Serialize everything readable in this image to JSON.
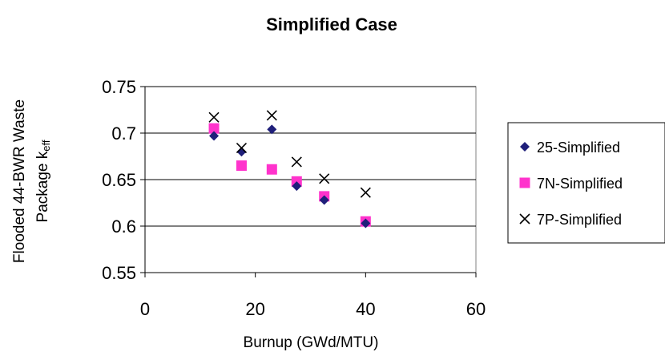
{
  "chart_data": {
    "type": "scatter",
    "title": "Simplified Case",
    "xlabel": "Burnup (GWd/MTU)",
    "ylabel_line1": "Flooded 44-BWR Waste",
    "ylabel_line2_main": "Package k",
    "ylabel_line2_sub": "eff",
    "xlim": [
      0,
      60
    ],
    "ylim": [
      0.55,
      0.75
    ],
    "xticks": [
      0,
      20,
      40,
      60
    ],
    "xtick_labels": [
      "0",
      "20",
      "40",
      "60"
    ],
    "yticks": [
      0.55,
      0.6,
      0.65,
      0.7,
      0.75
    ],
    "ytick_labels": [
      "0.55",
      "0.6",
      "0.65",
      "0.7",
      "0.75"
    ],
    "grid": "horizontal",
    "legend_position": "right",
    "series": [
      {
        "name": "25-Simplified",
        "marker": "diamond",
        "color": "#1f1f7a",
        "x": [
          12.5,
          17.5,
          23,
          27.5,
          32.5,
          40
        ],
        "y": [
          0.697,
          0.68,
          0.704,
          0.643,
          0.628,
          0.603
        ]
      },
      {
        "name": "7N-Simplified",
        "marker": "square",
        "color": "#ff33cc",
        "x": [
          12.5,
          17.5,
          23,
          27.5,
          32.5,
          40
        ],
        "y": [
          0.705,
          0.665,
          0.661,
          0.648,
          0.632,
          0.605
        ]
      },
      {
        "name": "7P-Simplified",
        "marker": "x",
        "color": "#000000",
        "x": [
          12.5,
          17.5,
          23,
          27.5,
          32.5,
          40
        ],
        "y": [
          0.717,
          0.684,
          0.719,
          0.669,
          0.651,
          0.636
        ]
      }
    ]
  }
}
